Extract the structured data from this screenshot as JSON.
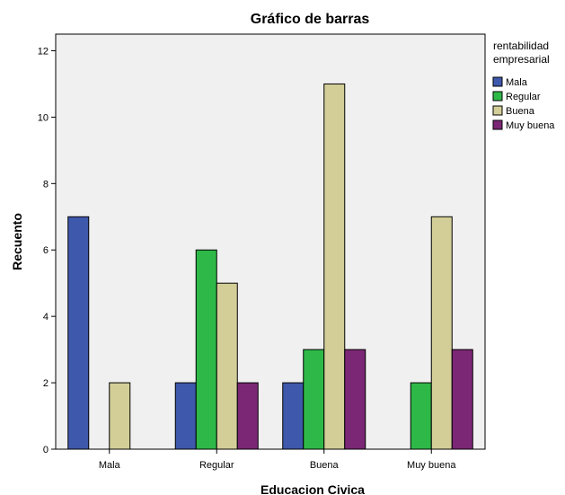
{
  "chart_data": {
    "type": "bar",
    "title": "Gráfico de barras",
    "xlabel": "Educacion Civica",
    "ylabel": "Recuento",
    "categories": [
      "Mala",
      "Regular",
      "Buena",
      "Muy buena"
    ],
    "series": [
      {
        "name": "Mala",
        "values": [
          7,
          2,
          2,
          0
        ],
        "color": "#3E58AC"
      },
      {
        "name": "Regular",
        "values": [
          0,
          6,
          3,
          2
        ],
        "color": "#2EB848"
      },
      {
        "name": "Buena",
        "values": [
          2,
          5,
          11,
          7
        ],
        "color": "#D3CE97"
      },
      {
        "name": "Muy buena",
        "values": [
          0,
          2,
          3,
          3
        ],
        "color": "#7B2775"
      }
    ],
    "ylim": [
      0,
      12.5
    ],
    "yticks": [
      0,
      2,
      4,
      6,
      8,
      10,
      12
    ],
    "grid": false,
    "legend": {
      "title_lines": [
        "rentabilidad",
        "empresarial"
      ],
      "position": "right"
    },
    "plot_background": "#F0F0F0"
  }
}
